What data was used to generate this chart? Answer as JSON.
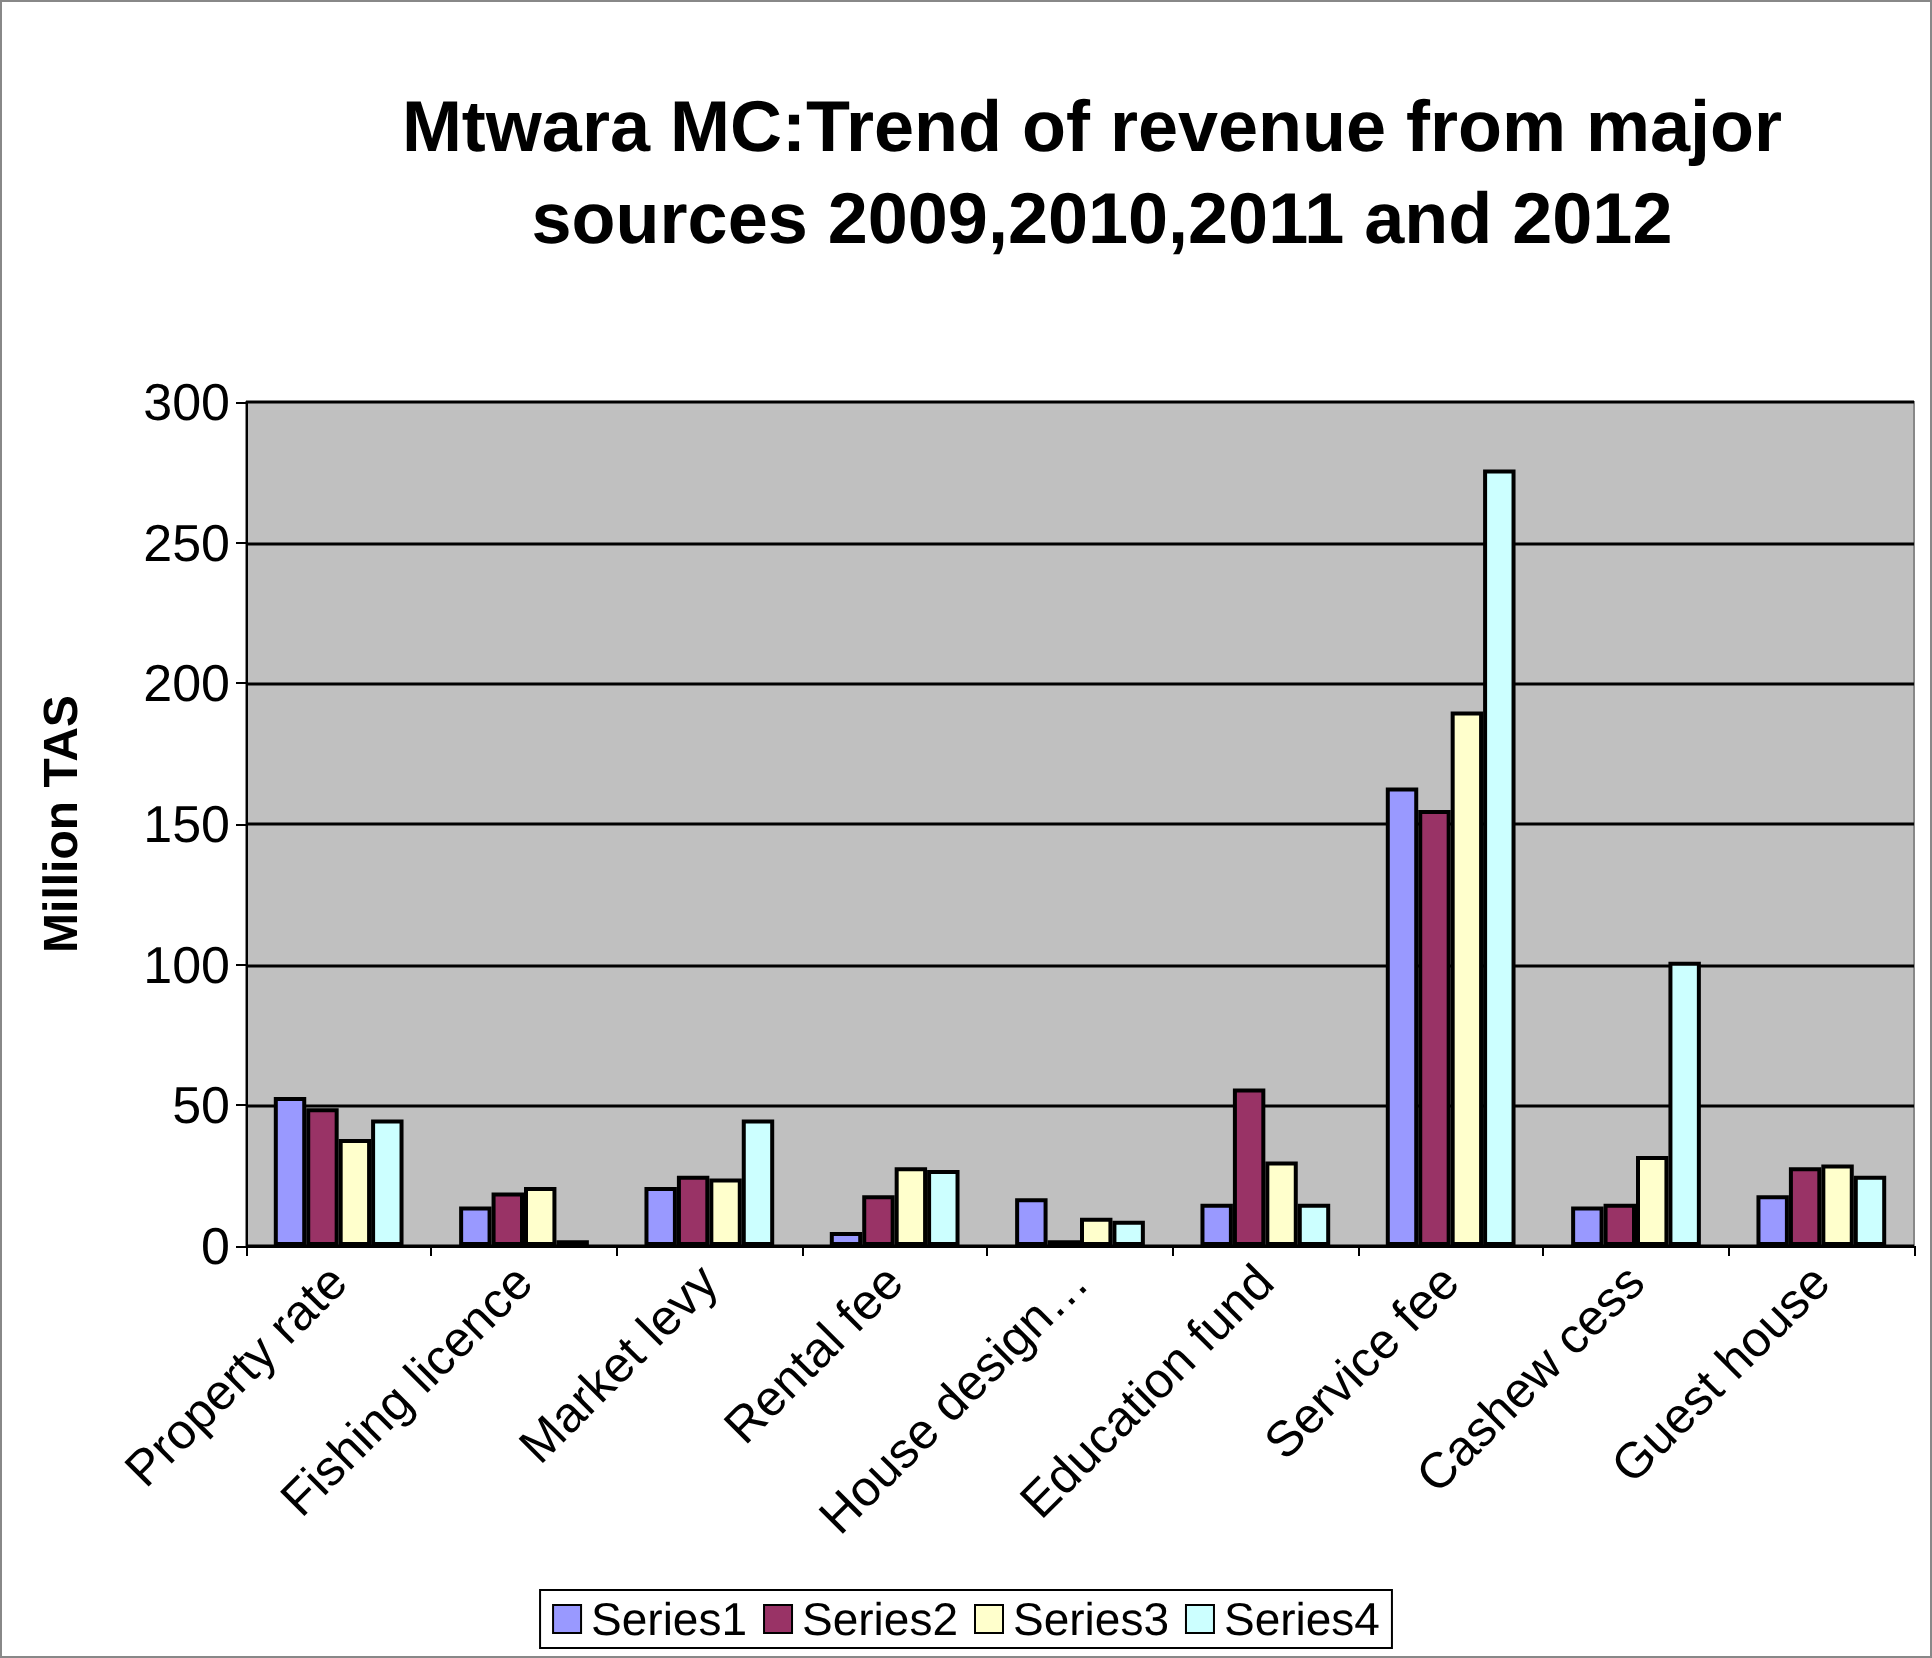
{
  "chart_data": {
    "type": "bar",
    "title": "Mtwara MC:Trend of revenue from major sources 2009,2010,2011 and 2012",
    "ylabel": "Million TAS",
    "categories": [
      "Property rate",
      "Fishing licence",
      "Market levy",
      "Rental fee",
      "House design…",
      "Education fund",
      "Service fee",
      "Cashew cess",
      "Guest house"
    ],
    "series": [
      {
        "name": "Series1",
        "color": "#9999ff",
        "values": [
          53,
          14,
          21,
          5,
          17,
          15,
          163,
          14,
          18
        ]
      },
      {
        "name": "Series2",
        "color": "#993366",
        "values": [
          49,
          19,
          25,
          18,
          2,
          56,
          155,
          15,
          28
        ]
      },
      {
        "name": "Series3",
        "color": "#ffffcc",
        "values": [
          38,
          21,
          24,
          28,
          10,
          30,
          190,
          32,
          29
        ]
      },
      {
        "name": "Series4",
        "color": "#ccffff",
        "values": [
          45,
          2,
          45,
          27,
          9,
          15,
          276,
          101,
          25
        ]
      }
    ],
    "ylim": [
      0,
      300
    ],
    "yticks": [
      0,
      50,
      100,
      150,
      200,
      250,
      300
    ],
    "grid": "y",
    "legend": "bottom"
  }
}
